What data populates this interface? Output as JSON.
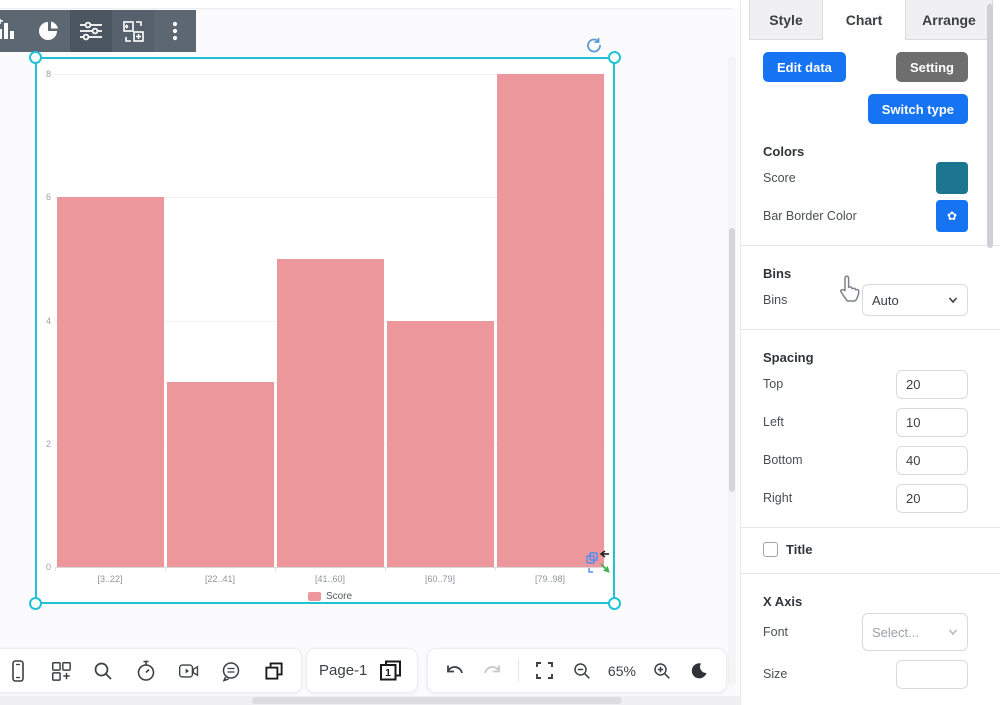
{
  "chart_data": {
    "type": "bar",
    "variant": "histogram",
    "title": "",
    "categories": [
      "[3..22]",
      "[22..41]",
      "[41..60]",
      "[60..79]",
      "[79..98]"
    ],
    "series": [
      {
        "name": "Score",
        "values": [
          6,
          3,
          5,
          4,
          8
        ],
        "color": "#ec979c"
      }
    ],
    "ylim": [
      0,
      8
    ],
    "yticks": [
      0,
      2,
      4,
      6,
      8
    ],
    "grid": true,
    "legend_position": "bottom"
  },
  "canvas": {
    "chart_toolbar_icons": [
      "bar-chart-icon",
      "pie-chart-icon",
      "sliders-icon",
      "swap-shape-icon",
      "more-vertical-icon"
    ],
    "selection_color": "#1fc3d5"
  },
  "panel": {
    "tabs": [
      {
        "label": "Style"
      },
      {
        "label": "Chart"
      },
      {
        "label": "Arrange"
      }
    ],
    "active_tab": "Chart",
    "edit_data_label": "Edit data",
    "setting_label": "Setting",
    "switch_type_label": "Switch type",
    "colors": {
      "header": "Colors",
      "score_label": "Score",
      "score_color": "#1d7690",
      "bar_border_label": "Bar Border Color",
      "bar_border_color": "#1673f1"
    },
    "bins": {
      "header": "Bins",
      "label": "Bins",
      "value": "Auto"
    },
    "spacing": {
      "header": "Spacing",
      "rows": [
        {
          "label": "Top",
          "value": "20"
        },
        {
          "label": "Left",
          "value": "10"
        },
        {
          "label": "Bottom",
          "value": "40"
        },
        {
          "label": "Right",
          "value": "20"
        }
      ]
    },
    "title": {
      "label": "Title",
      "checked": false
    },
    "x_axis": {
      "header": "X Axis",
      "font_label": "Font",
      "font_value": "Select...",
      "size_label": "Size",
      "size_value": ""
    }
  },
  "bottom_bar": {
    "left_icons": [
      "device-icon",
      "add-widget-icon",
      "search-icon",
      "timer-icon",
      "record-icon",
      "comment-icon",
      "pages-overview-icon"
    ],
    "page_label": "Page-1",
    "page_number": "1",
    "zoom_level": "65%"
  },
  "accent_blue": "#1673f1",
  "bar_color": "#ec979c"
}
